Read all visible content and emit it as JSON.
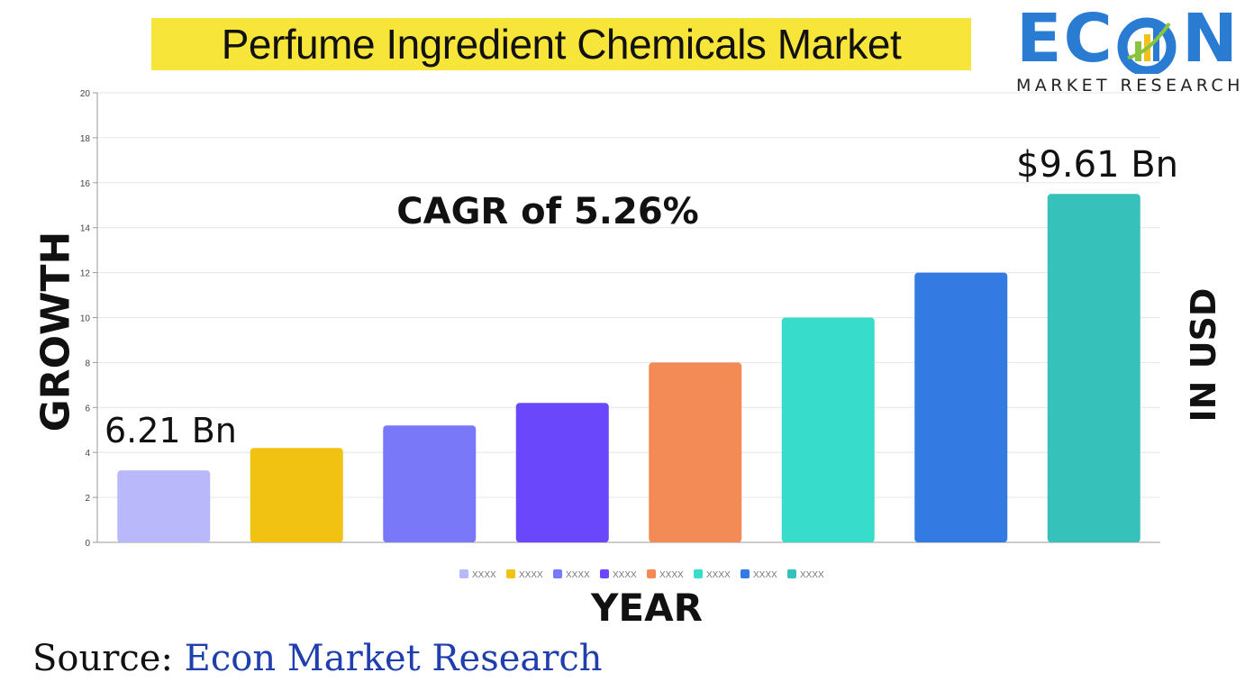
{
  "title": "Perfume Ingredient Chemicals Market",
  "logo": {
    "word_left": "EC",
    "word_right": "N",
    "subtitle": "MARKET RESEARCH"
  },
  "annotations": {
    "cagr": "CAGR of 5.26%",
    "start_value": "6.21 Bn",
    "end_value": "$9.61 Bn"
  },
  "source": {
    "prefix": "Source:",
    "org": "Econ Market Research"
  },
  "colors": {
    "title_bg": "#f7e53a",
    "logo_blue": "#2a7bd2",
    "source_org": "#1f3fae"
  },
  "chart_data": {
    "type": "bar",
    "xlabel": "YEAR",
    "ylabel": "GROWTH",
    "y2label": "IN USD",
    "ylim": [
      0,
      20
    ],
    "yticks": [
      0,
      2,
      4,
      6,
      8,
      10,
      12,
      14,
      16,
      18,
      20
    ],
    "grid": true,
    "legend_position": "bottom",
    "series": [
      {
        "name": "XXXX",
        "value": 3.2,
        "color": "#b8b8fb"
      },
      {
        "name": "XXXX",
        "value": 4.2,
        "color": "#f1c212"
      },
      {
        "name": "XXXX",
        "value": 5.2,
        "color": "#7878f8"
      },
      {
        "name": "XXXX",
        "value": 6.2,
        "color": "#6b47fb"
      },
      {
        "name": "XXXX",
        "value": 8.0,
        "color": "#f28b55"
      },
      {
        "name": "XXXX",
        "value": 10.0,
        "color": "#38dccb"
      },
      {
        "name": "XXXX",
        "value": 12.0,
        "color": "#337ae2"
      },
      {
        "name": "XXXX",
        "value": 15.5,
        "color": "#36c1bb"
      }
    ]
  }
}
